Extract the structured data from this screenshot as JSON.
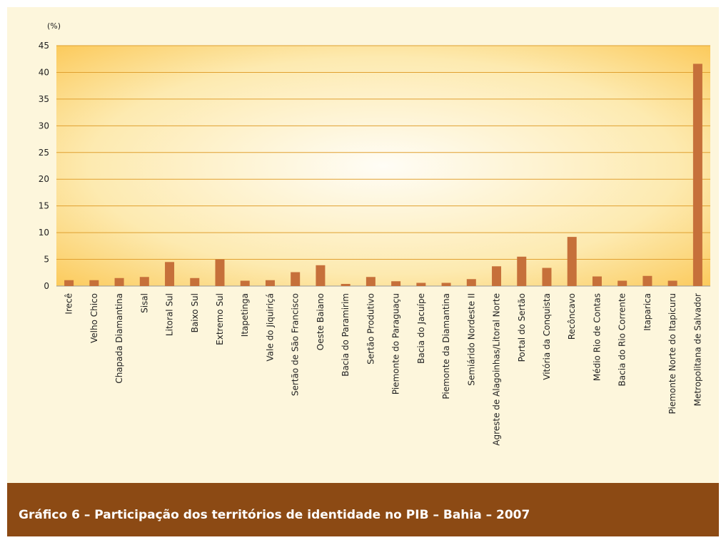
{
  "chart_data": {
    "type": "bar",
    "title": "Gráfico 6 – Participação dos territórios de identidade no PIB – Bahia – 2007",
    "y_label": "(%)",
    "categories": [
      "Irecê",
      "Velho Chico",
      "Chapada Diamantina",
      "Sisal",
      "Litoral Sul",
      "Baixo Sul",
      "Extremo Sul",
      "Itapetinga",
      "Vale do Jiquiriçá",
      "Sertão de São Francisco",
      "Oeste Baiano",
      "Bacia do Paramirim",
      "Sertão Produtivo",
      "Piemonte do Paraguaçu",
      "Bacia do Jacuípe",
      "Piemonte da Diamantina",
      "Semiárido Nordeste II",
      "Agreste de Alagoinhas/Litoral Norte",
      "Portal do Sertão",
      "Vitória da Conquista",
      "Recôncavo",
      "Médio Rio de Contas",
      "Bacia do Rio Corrente",
      "Itaparica",
      "Piemonte Norte do Itapicuru",
      "Metropolitana de Salvador"
    ],
    "values": [
      1.1,
      1.1,
      1.5,
      1.7,
      4.5,
      1.5,
      5.0,
      1.0,
      1.1,
      2.6,
      3.9,
      0.4,
      1.7,
      0.9,
      0.6,
      0.6,
      1.3,
      3.7,
      5.5,
      3.4,
      9.2,
      1.8,
      1.0,
      1.9,
      1.0,
      41.6
    ],
    "color": "#c6703a",
    "ylim": [
      0,
      45
    ],
    "yticks": [
      0,
      5,
      10,
      15,
      20,
      25,
      30,
      35,
      40,
      45
    ],
    "grid": true
  }
}
